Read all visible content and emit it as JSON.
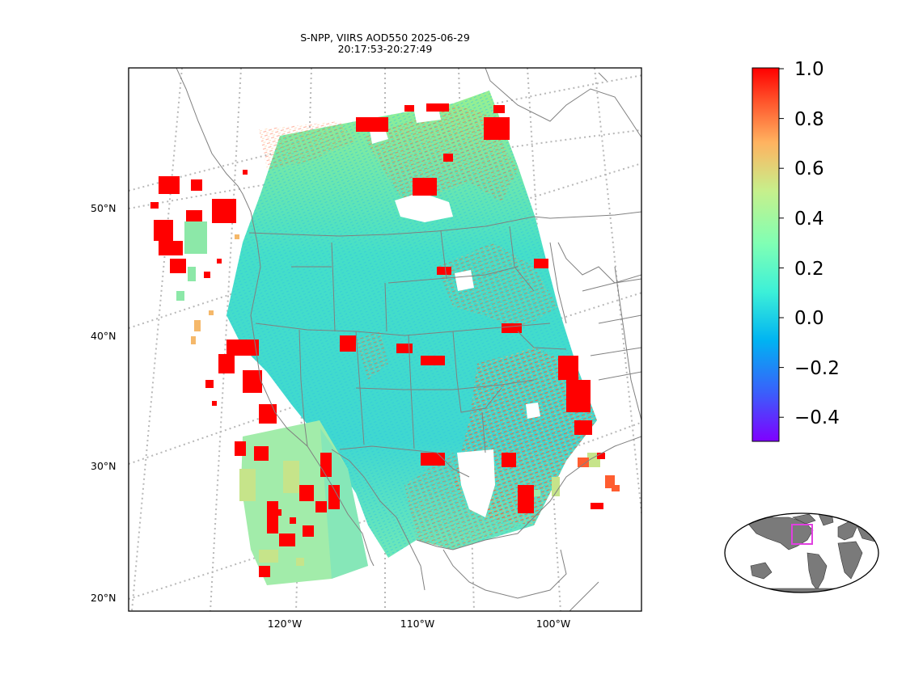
{
  "title": {
    "line1": "S-NPP, VIIRS AOD550 2025-06-29",
    "line2": "20:17:53-20:27:49"
  },
  "map": {
    "projection": "lambert-conformal",
    "gridlines": "dotted",
    "lat_labels": [
      "50°N",
      "40°N",
      "30°N",
      "20°N"
    ],
    "lon_labels": [
      "120°W",
      "110°W",
      "100°W"
    ],
    "coastline_color": "#808080",
    "border_color": "#808080"
  },
  "colorbar": {
    "colormap": "rainbow",
    "vmin": -0.5,
    "vmax": 1.0,
    "ticks": [
      "1.0",
      "0.8",
      "0.6",
      "0.4",
      "0.2",
      "0.0",
      "−0.2",
      "−0.4"
    ],
    "colors": [
      "#7f00ff",
      "#3a5ffb",
      "#00b3f2",
      "#3cf0d8",
      "#80ffb4",
      "#c6f08c",
      "#ffb360",
      "#ff5d30",
      "#ff0000"
    ]
  },
  "inset": {
    "type": "world-locator",
    "land_color": "#808080",
    "highlight_color": "#e040e0"
  }
}
